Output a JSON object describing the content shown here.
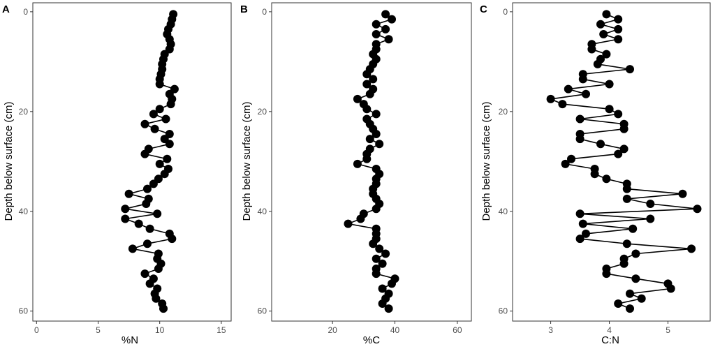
{
  "chart_data": [
    {
      "type": "scatter",
      "panel": "A",
      "xlabel": "%N",
      "ylabel": "Depth below surface (cm)",
      "xlim": [
        -0.3,
        15.8
      ],
      "ylim": [
        -1.8,
        62
      ],
      "xticks": [
        0,
        5,
        10,
        15
      ],
      "yticks": [
        0,
        20,
        40,
        60
      ],
      "y_reversed": true,
      "grid": false,
      "legend": "none",
      "line_color": "#000000",
      "marker_color": "#000000",
      "points": [
        {
          "x": 11.1,
          "y": 0.5
        },
        {
          "x": 11.0,
          "y": 1.5
        },
        {
          "x": 10.9,
          "y": 2.5
        },
        {
          "x": 10.7,
          "y": 3.5
        },
        {
          "x": 10.6,
          "y": 4.5
        },
        {
          "x": 10.8,
          "y": 5.5
        },
        {
          "x": 10.9,
          "y": 6.5
        },
        {
          "x": 10.8,
          "y": 7.5
        },
        {
          "x": 10.4,
          "y": 8.5
        },
        {
          "x": 10.3,
          "y": 9.5
        },
        {
          "x": 10.2,
          "y": 10.5
        },
        {
          "x": 10.2,
          "y": 11.5
        },
        {
          "x": 10.1,
          "y": 12.5
        },
        {
          "x": 10.0,
          "y": 13.5
        },
        {
          "x": 10.0,
          "y": 14.5
        },
        {
          "x": 11.2,
          "y": 15.5
        },
        {
          "x": 10.8,
          "y": 16.5
        },
        {
          "x": 11.0,
          "y": 17.5
        },
        {
          "x": 10.9,
          "y": 18.5
        },
        {
          "x": 10.0,
          "y": 19.5
        },
        {
          "x": 9.5,
          "y": 20.5
        },
        {
          "x": 10.5,
          "y": 21.5
        },
        {
          "x": 8.8,
          "y": 22.5
        },
        {
          "x": 9.6,
          "y": 23.5
        },
        {
          "x": 10.8,
          "y": 24.5
        },
        {
          "x": 10.4,
          "y": 25.5
        },
        {
          "x": 10.8,
          "y": 26.5
        },
        {
          "x": 9.1,
          "y": 27.5
        },
        {
          "x": 8.8,
          "y": 28.5
        },
        {
          "x": 10.6,
          "y": 29.5
        },
        {
          "x": 10.0,
          "y": 30.5
        },
        {
          "x": 10.7,
          "y": 31.5
        },
        {
          "x": 10.4,
          "y": 32.5
        },
        {
          "x": 9.9,
          "y": 33.5
        },
        {
          "x": 9.5,
          "y": 34.5
        },
        {
          "x": 9.0,
          "y": 35.5
        },
        {
          "x": 7.5,
          "y": 36.5
        },
        {
          "x": 9.1,
          "y": 37.5
        },
        {
          "x": 8.9,
          "y": 38.5
        },
        {
          "x": 7.2,
          "y": 39.5
        },
        {
          "x": 9.8,
          "y": 40.5
        },
        {
          "x": 7.2,
          "y": 41.5
        },
        {
          "x": 8.3,
          "y": 42.5
        },
        {
          "x": 9.2,
          "y": 43.5
        },
        {
          "x": 10.8,
          "y": 44.5
        },
        {
          "x": 11.0,
          "y": 45.5
        },
        {
          "x": 9.0,
          "y": 46.5
        },
        {
          "x": 7.8,
          "y": 47.5
        },
        {
          "x": 9.9,
          "y": 48.5
        },
        {
          "x": 9.8,
          "y": 49.5
        },
        {
          "x": 10.1,
          "y": 50.5
        },
        {
          "x": 9.9,
          "y": 51.5
        },
        {
          "x": 8.8,
          "y": 52.5
        },
        {
          "x": 9.5,
          "y": 53.5
        },
        {
          "x": 9.2,
          "y": 54.5
        },
        {
          "x": 9.8,
          "y": 55.5
        },
        {
          "x": 9.6,
          "y": 56.5
        },
        {
          "x": 9.7,
          "y": 57.5
        },
        {
          "x": 10.2,
          "y": 58.5
        },
        {
          "x": 10.3,
          "y": 59.5
        }
      ]
    },
    {
      "type": "scatter",
      "panel": "B",
      "xlabel": "%C",
      "ylabel": "Depth below surface (cm)",
      "xlim": [
        0.5,
        64.5
      ],
      "ylim": [
        -1.8,
        62
      ],
      "xticks": [
        20,
        40,
        60
      ],
      "yticks": [
        0,
        20,
        40,
        60
      ],
      "y_reversed": true,
      "grid": false,
      "legend": "none",
      "line_color": "#000000",
      "marker_color": "#000000",
      "points": [
        {
          "x": 37,
          "y": 0.5
        },
        {
          "x": 39,
          "y": 1.5
        },
        {
          "x": 34,
          "y": 2.5
        },
        {
          "x": 37,
          "y": 3.5
        },
        {
          "x": 34,
          "y": 4.5
        },
        {
          "x": 38,
          "y": 5.5
        },
        {
          "x": 34,
          "y": 6.5
        },
        {
          "x": 34,
          "y": 7.5
        },
        {
          "x": 33,
          "y": 8.5
        },
        {
          "x": 34,
          "y": 9.5
        },
        {
          "x": 33,
          "y": 10.5
        },
        {
          "x": 32,
          "y": 11.5
        },
        {
          "x": 31,
          "y": 12.5
        },
        {
          "x": 33,
          "y": 13.5
        },
        {
          "x": 31,
          "y": 14.5
        },
        {
          "x": 33,
          "y": 15.5
        },
        {
          "x": 32,
          "y": 16.5
        },
        {
          "x": 28,
          "y": 17.5
        },
        {
          "x": 30,
          "y": 18.5
        },
        {
          "x": 31,
          "y": 19.5
        },
        {
          "x": 34,
          "y": 20.5
        },
        {
          "x": 31,
          "y": 21.5
        },
        {
          "x": 32,
          "y": 22.5
        },
        {
          "x": 33,
          "y": 23.5
        },
        {
          "x": 34,
          "y": 24.5
        },
        {
          "x": 32,
          "y": 25.5
        },
        {
          "x": 35,
          "y": 26.5
        },
        {
          "x": 32,
          "y": 27.5
        },
        {
          "x": 31,
          "y": 28.5
        },
        {
          "x": 31,
          "y": 29.5
        },
        {
          "x": 28,
          "y": 30.5
        },
        {
          "x": 34,
          "y": 31.5
        },
        {
          "x": 35,
          "y": 32.5
        },
        {
          "x": 34,
          "y": 33.5
        },
        {
          "x": 34,
          "y": 34.5
        },
        {
          "x": 33,
          "y": 35.5
        },
        {
          "x": 33,
          "y": 36.5
        },
        {
          "x": 34,
          "y": 37.5
        },
        {
          "x": 35,
          "y": 38.5
        },
        {
          "x": 34,
          "y": 39.5
        },
        {
          "x": 30,
          "y": 40.5
        },
        {
          "x": 29,
          "y": 41.5
        },
        {
          "x": 25,
          "y": 42.5
        },
        {
          "x": 34,
          "y": 43.5
        },
        {
          "x": 34,
          "y": 44.5
        },
        {
          "x": 34,
          "y": 45.5
        },
        {
          "x": 33,
          "y": 46.5
        },
        {
          "x": 35,
          "y": 47.5
        },
        {
          "x": 37,
          "y": 48.5
        },
        {
          "x": 34,
          "y": 49.5
        },
        {
          "x": 36,
          "y": 50.5
        },
        {
          "x": 34,
          "y": 51.5
        },
        {
          "x": 34,
          "y": 52.5
        },
        {
          "x": 40,
          "y": 53.5
        },
        {
          "x": 39,
          "y": 54.5
        },
        {
          "x": 36,
          "y": 55.5
        },
        {
          "x": 38,
          "y": 56.5
        },
        {
          "x": 37,
          "y": 57.5
        },
        {
          "x": 36,
          "y": 58.5
        },
        {
          "x": 38,
          "y": 59.5
        }
      ]
    },
    {
      "type": "scatter",
      "panel": "C",
      "xlabel": "C:N",
      "ylabel": "Depth below surface (cm)",
      "xlim": [
        2.35,
        5.72
      ],
      "ylim": [
        -1.8,
        62
      ],
      "xticks": [
        3,
        4,
        5
      ],
      "yticks": [
        0,
        20,
        40,
        60
      ],
      "y_reversed": true,
      "grid": false,
      "legend": "none",
      "line_color": "#000000",
      "marker_color": "#000000",
      "points": [
        {
          "x": 3.95,
          "y": 0.5
        },
        {
          "x": 4.15,
          "y": 1.5
        },
        {
          "x": 3.85,
          "y": 2.5
        },
        {
          "x": 4.15,
          "y": 3.5
        },
        {
          "x": 3.9,
          "y": 4.5
        },
        {
          "x": 4.15,
          "y": 5.5
        },
        {
          "x": 3.7,
          "y": 6.5
        },
        {
          "x": 3.7,
          "y": 7.5
        },
        {
          "x": 3.95,
          "y": 8.5
        },
        {
          "x": 3.85,
          "y": 9.5
        },
        {
          "x": 3.8,
          "y": 10.5
        },
        {
          "x": 4.35,
          "y": 11.5
        },
        {
          "x": 3.55,
          "y": 12.5
        },
        {
          "x": 3.55,
          "y": 13.5
        },
        {
          "x": 4.0,
          "y": 14.5
        },
        {
          "x": 3.3,
          "y": 15.5
        },
        {
          "x": 3.6,
          "y": 16.5
        },
        {
          "x": 3.0,
          "y": 17.5
        },
        {
          "x": 3.2,
          "y": 18.5
        },
        {
          "x": 4.0,
          "y": 19.5
        },
        {
          "x": 4.15,
          "y": 20.5
        },
        {
          "x": 3.5,
          "y": 21.5
        },
        {
          "x": 4.25,
          "y": 22.5
        },
        {
          "x": 4.25,
          "y": 23.5
        },
        {
          "x": 3.5,
          "y": 24.5
        },
        {
          "x": 3.5,
          "y": 25.5
        },
        {
          "x": 3.85,
          "y": 26.5
        },
        {
          "x": 4.25,
          "y": 27.5
        },
        {
          "x": 4.15,
          "y": 28.5
        },
        {
          "x": 3.35,
          "y": 29.5
        },
        {
          "x": 3.25,
          "y": 30.5
        },
        {
          "x": 3.75,
          "y": 31.5
        },
        {
          "x": 3.75,
          "y": 32.5
        },
        {
          "x": 3.95,
          "y": 33.5
        },
        {
          "x": 4.3,
          "y": 34.5
        },
        {
          "x": 4.3,
          "y": 35.5
        },
        {
          "x": 5.25,
          "y": 36.5
        },
        {
          "x": 4.3,
          "y": 37.5
        },
        {
          "x": 4.7,
          "y": 38.5
        },
        {
          "x": 5.5,
          "y": 39.5
        },
        {
          "x": 3.5,
          "y": 40.5
        },
        {
          "x": 4.7,
          "y": 41.5
        },
        {
          "x": 3.55,
          "y": 42.5
        },
        {
          "x": 4.4,
          "y": 43.5
        },
        {
          "x": 3.6,
          "y": 44.5
        },
        {
          "x": 3.5,
          "y": 45.5
        },
        {
          "x": 4.3,
          "y": 46.5
        },
        {
          "x": 5.4,
          "y": 47.5
        },
        {
          "x": 4.45,
          "y": 48.5
        },
        {
          "x": 4.25,
          "y": 49.5
        },
        {
          "x": 4.25,
          "y": 50.5
        },
        {
          "x": 3.95,
          "y": 51.5
        },
        {
          "x": 3.95,
          "y": 52.5
        },
        {
          "x": 4.45,
          "y": 53.5
        },
        {
          "x": 5.0,
          "y": 54.5
        },
        {
          "x": 5.05,
          "y": 55.5
        },
        {
          "x": 4.35,
          "y": 56.5
        },
        {
          "x": 4.55,
          "y": 57.5
        },
        {
          "x": 4.15,
          "y": 58.5
        },
        {
          "x": 4.35,
          "y": 59.5
        }
      ]
    }
  ]
}
